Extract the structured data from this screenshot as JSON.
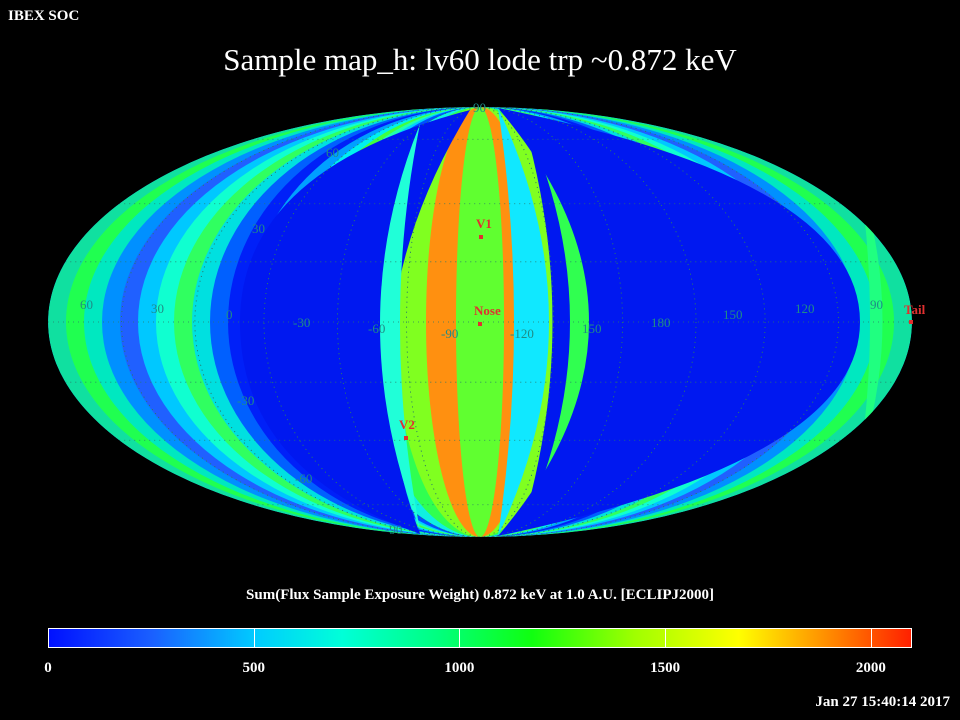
{
  "corner_label": "IBEX SOC",
  "chart_data": {
    "type": "heatmap",
    "title": "Sample map_h: lv60 lode trp ~0.872 keV",
    "projection": "mollweide",
    "colorbar": {
      "title": "Sum(Flux Sample Exposure Weight)  0.872 keV at 1.0 A.U. [ECLIPJ2000]",
      "ticks": [
        "0",
        "500",
        "1000",
        "1500",
        "2000"
      ],
      "range": [
        0,
        2100
      ]
    },
    "longitude_labels": [
      "60",
      "30",
      "0",
      "-30",
      "-60",
      "-90",
      "-120",
      "150",
      "180",
      "150",
      "120",
      "90"
    ],
    "latitude_labels": [
      "60",
      "30",
      "-30",
      "-60"
    ],
    "pole_labels": [
      "90",
      "-90"
    ],
    "markers": [
      {
        "name": "V1",
        "color": "#e03030"
      },
      {
        "name": "Nose",
        "color": "#e03030"
      },
      {
        "name": "V2",
        "color": "#e03030"
      },
      {
        "name": "Tail",
        "color": "#e03030"
      }
    ]
  },
  "timestamp": "Jan 27 15:40:14 2017"
}
